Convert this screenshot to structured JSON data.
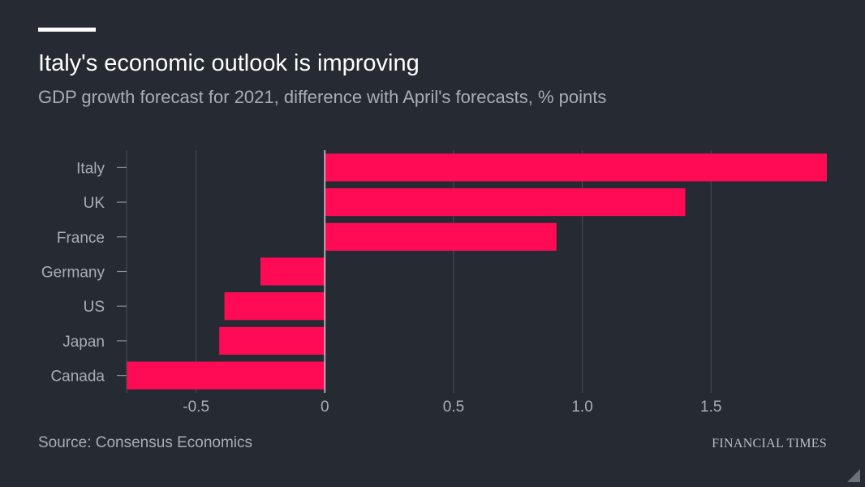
{
  "header": {
    "title": "Italy's economic outlook is improving",
    "subtitle": "GDP growth forecast for 2021, difference with April's forecasts, % points"
  },
  "footer": {
    "source": "Source: Consensus Economics",
    "brand": "FINANCIAL TIMES"
  },
  "colors": {
    "background": "#262a33",
    "bar": "#ff0a55",
    "grid": "#4a4f58",
    "text_muted": "#a8adb6"
  },
  "chart_data": {
    "type": "bar",
    "orientation": "horizontal",
    "title": "Italy's economic outlook is improving",
    "subtitle": "GDP growth forecast for 2021, difference with April's forecasts, % points",
    "categories": [
      "Italy",
      "UK",
      "France",
      "Germany",
      "US",
      "Japan",
      "Canada"
    ],
    "values": [
      1.95,
      1.4,
      0.9,
      -0.25,
      -0.39,
      -0.41,
      -0.77
    ],
    "xlim": [
      -0.77,
      1.95
    ],
    "xticks": [
      -0.5,
      0,
      0.5,
      1.0,
      1.5
    ],
    "xtick_labels": [
      "-0.5",
      "0",
      "0.5",
      "1.0",
      "1.5"
    ],
    "grid": "vertical",
    "legend": "none"
  }
}
